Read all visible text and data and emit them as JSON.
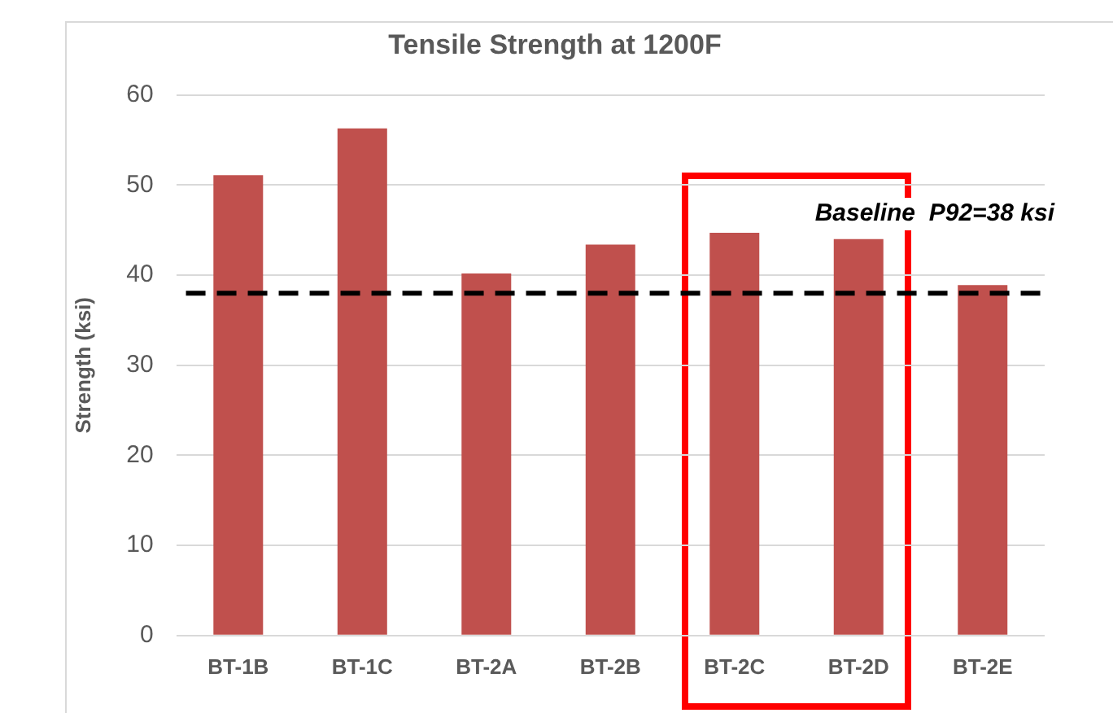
{
  "chart_data": {
    "type": "bar",
    "title": "Tensile Strength at 1200F",
    "ylabel": "Strength (ksi)",
    "categories": [
      "BT-1B",
      "BT-1C",
      "BT-2A",
      "BT-2B",
      "BT-2C",
      "BT-2D",
      "BT-2E"
    ],
    "values": [
      51.1,
      56.3,
      40.2,
      43.4,
      44.7,
      44.0,
      38.9
    ],
    "color": "#c0504d",
    "ylim": [
      0,
      60
    ],
    "yticks": [
      0,
      10,
      20,
      30,
      40,
      50,
      60
    ],
    "grid": "y",
    "legend": false,
    "ref_lines": [
      {
        "axis": "y",
        "value": 38,
        "label": "Baseline  P92=38 ksi",
        "color": "#000000",
        "line_style": "dashed"
      }
    ]
  }
}
